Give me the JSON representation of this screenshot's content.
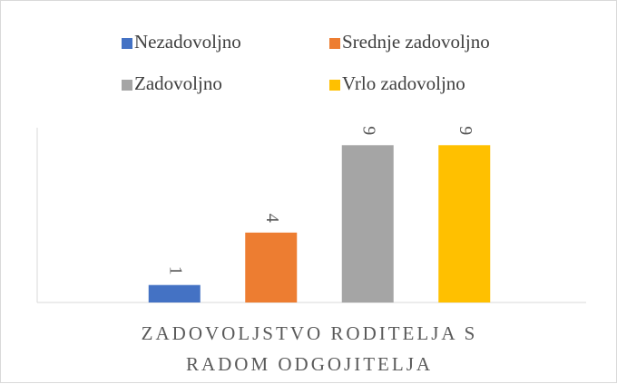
{
  "chart_data": {
    "type": "bar",
    "categories": [
      "ZADOVOLJSTVO RODITELJA S RADOM ODGOJITELJA"
    ],
    "series": [
      {
        "name": "Nezadovoljno",
        "color": "#4472c4",
        "values": [
          1
        ]
      },
      {
        "name": "Srednje zadovoljno",
        "color": "#ed7d31",
        "values": [
          4
        ]
      },
      {
        "name": "Zadovoljno",
        "color": "#a5a5a5",
        "values": [
          9
        ]
      },
      {
        "name": "Vrlo zadovoljno",
        "color": "#ffc000",
        "values": [
          9
        ]
      }
    ],
    "ylim": [
      0,
      10
    ]
  }
}
